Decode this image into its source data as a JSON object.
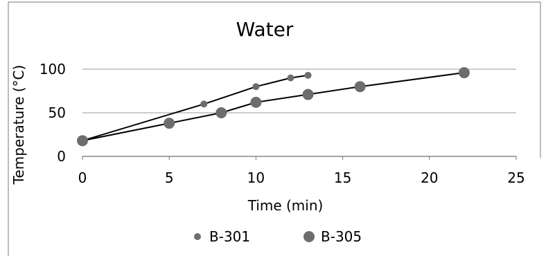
{
  "chart_data": {
    "type": "scatter",
    "title": "Water",
    "xlabel": "Time (min)",
    "ylabel": "Temperature (°C)",
    "xlim": [
      0,
      25
    ],
    "ylim": [
      0,
      100
    ],
    "x_ticks": [
      "0",
      "5",
      "10",
      "15",
      "20",
      "25"
    ],
    "y_ticks": [
      "0",
      "50",
      "100"
    ],
    "grid": "horizontal",
    "legend_position": "bottom",
    "series": [
      {
        "name": "B-301",
        "marker": "small-circle",
        "color": "#6d6d6d",
        "x": [
          0,
          7,
          10,
          12,
          13
        ],
        "y": [
          18,
          60,
          80,
          90,
          93
        ]
      },
      {
        "name": "B-305",
        "marker": "large-circle",
        "color": "#6d6d6d",
        "x": [
          0,
          5,
          8,
          10,
          13,
          16,
          22
        ],
        "y": [
          18,
          38,
          50,
          62,
          71,
          80,
          96
        ]
      }
    ]
  }
}
